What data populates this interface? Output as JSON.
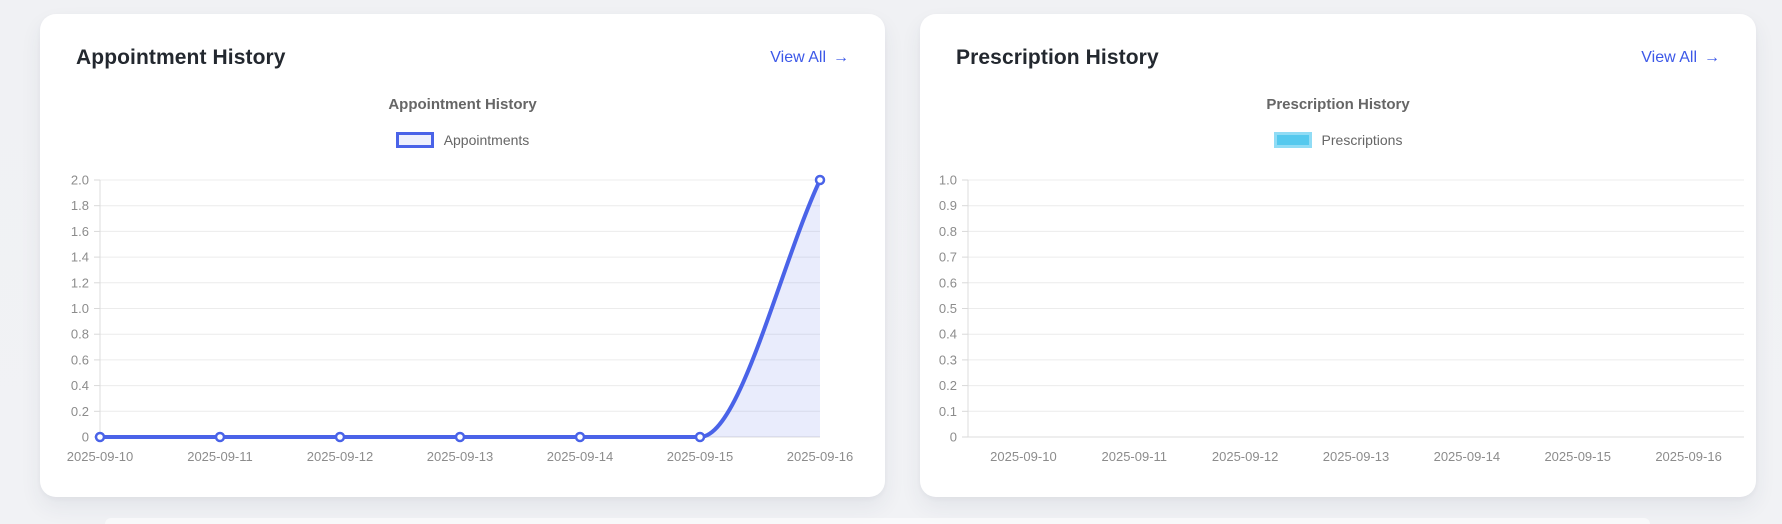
{
  "page": {
    "background_color": "#f0f1f4",
    "card_color": "#ffffff"
  },
  "cards": [
    {
      "title": "Appointment History",
      "view_all_label": "View All",
      "view_all_arrow": "→",
      "link_color": "#3c58e8"
    },
    {
      "title": "Prescription History",
      "view_all_label": "View All",
      "view_all_arrow": "→",
      "link_color": "#3c58e8"
    }
  ],
  "chart_style": {
    "grid_color": "#ececec",
    "axis_color": "#dcdcdc",
    "tick_color": "#d9d9d9",
    "label_color": "#8c8c8c"
  },
  "chart_data": [
    {
      "type": "line",
      "title": "Appointment History",
      "categories": [
        "2025-09-10",
        "2025-09-11",
        "2025-09-12",
        "2025-09-13",
        "2025-09-14",
        "2025-09-15",
        "2025-09-16"
      ],
      "values": [
        0,
        0,
        0,
        0,
        0,
        0,
        2
      ],
      "ylim": [
        0,
        2.0
      ],
      "ytick_step": 0.2,
      "x_axis_alignment": "point",
      "grid": true,
      "legend_position": "top",
      "line_color": "#4a63e8",
      "area_fill": "rgba(74, 99, 232, 0.12)",
      "point_style": "hollow-circle",
      "legend": [
        {
          "label": "Appointments",
          "box_fill": "#eef0fd",
          "box_border": "#4a63e8"
        }
      ]
    },
    {
      "type": "bar",
      "title": "Prescription History",
      "categories": [
        "2025-09-10",
        "2025-09-11",
        "2025-09-12",
        "2025-09-13",
        "2025-09-14",
        "2025-09-15",
        "2025-09-16"
      ],
      "values": [
        0,
        0,
        0,
        0,
        0,
        0,
        0
      ],
      "ylim": [
        0,
        1.0
      ],
      "ytick_step": 0.1,
      "x_axis_alignment": "category",
      "grid": true,
      "legend_position": "top",
      "bar_color": "#55c9ee",
      "legend": [
        {
          "label": "Prescriptions",
          "box_fill": "#55c9ee",
          "box_border": "#90dcf5"
        }
      ]
    }
  ]
}
